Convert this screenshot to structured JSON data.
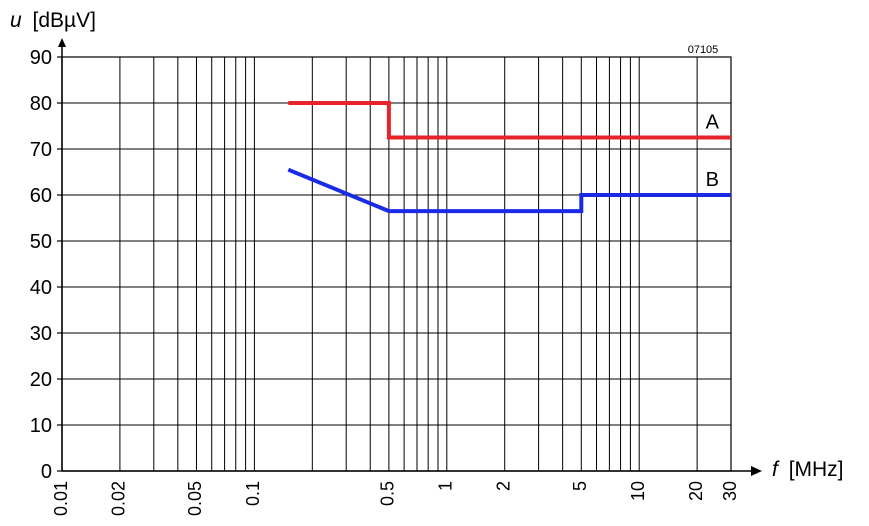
{
  "chart_data": {
    "type": "line",
    "title": "",
    "ylabel_var": "u",
    "ylabel_unit": "[dBµV]",
    "xlabel_var": "f",
    "xlabel_unit": "[MHz]",
    "figure_code": "07105",
    "x_scale": "log",
    "xlim": [
      0.01,
      30
    ],
    "ylim": [
      0,
      90
    ],
    "y_ticks": [
      0,
      10,
      20,
      30,
      40,
      50,
      60,
      70,
      80,
      90
    ],
    "y_tick_labels": [
      "0",
      "10",
      "20",
      "30",
      "40",
      "50",
      "60",
      "70",
      "80",
      "90"
    ],
    "x_ticks": [
      0.01,
      0.02,
      0.05,
      0.1,
      0.5,
      1,
      2,
      5,
      10,
      20,
      30
    ],
    "x_tick_labels": [
      "0.01",
      "0.02",
      "0.05",
      "0.1",
      "0.5",
      "1",
      "2",
      "5",
      "10",
      "20",
      "30"
    ],
    "grid": true,
    "series": [
      {
        "name": "A",
        "color": "#e8232a",
        "points": [
          [
            0.15,
            80
          ],
          [
            0.5,
            80
          ],
          [
            0.5,
            72.5
          ],
          [
            30,
            72.5
          ]
        ]
      },
      {
        "name": "B",
        "color": "#1a2be8",
        "points": [
          [
            0.15,
            65.5
          ],
          [
            0.5,
            56.5
          ],
          [
            5,
            56.5
          ],
          [
            5,
            60
          ],
          [
            30,
            60
          ]
        ]
      }
    ]
  }
}
